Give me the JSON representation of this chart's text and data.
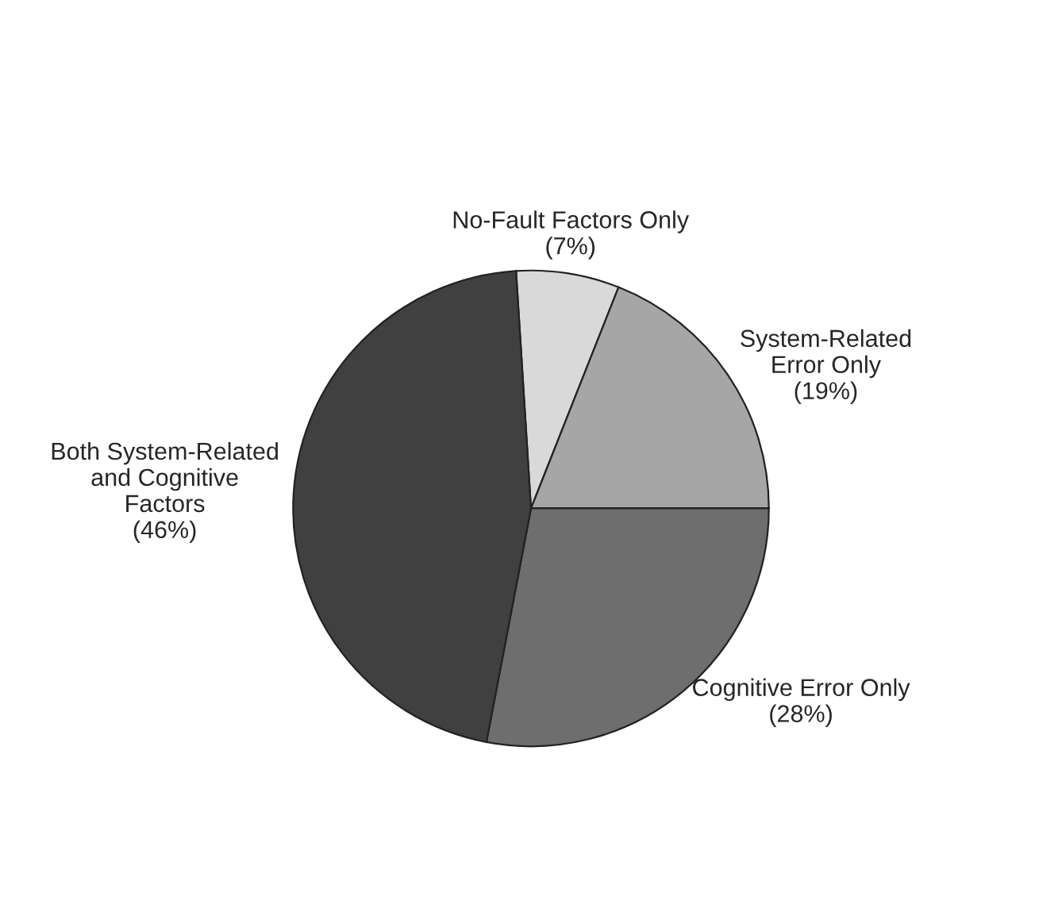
{
  "chart_data": {
    "type": "pie",
    "categories": [
      "No-Fault Factors Only",
      "System-Related\nError Only",
      "Cognitive Error Only",
      "Both System-Related\nand Cognitive\nFactors"
    ],
    "values": [
      7,
      19,
      28,
      46
    ],
    "value_labels": [
      "(7%)",
      "(19%)",
      "(28%)",
      "(46%)"
    ],
    "colors": [
      "#d9d9d9",
      "#a6a6a6",
      "#6e6e6e",
      "#404040"
    ],
    "legend": false
  }
}
